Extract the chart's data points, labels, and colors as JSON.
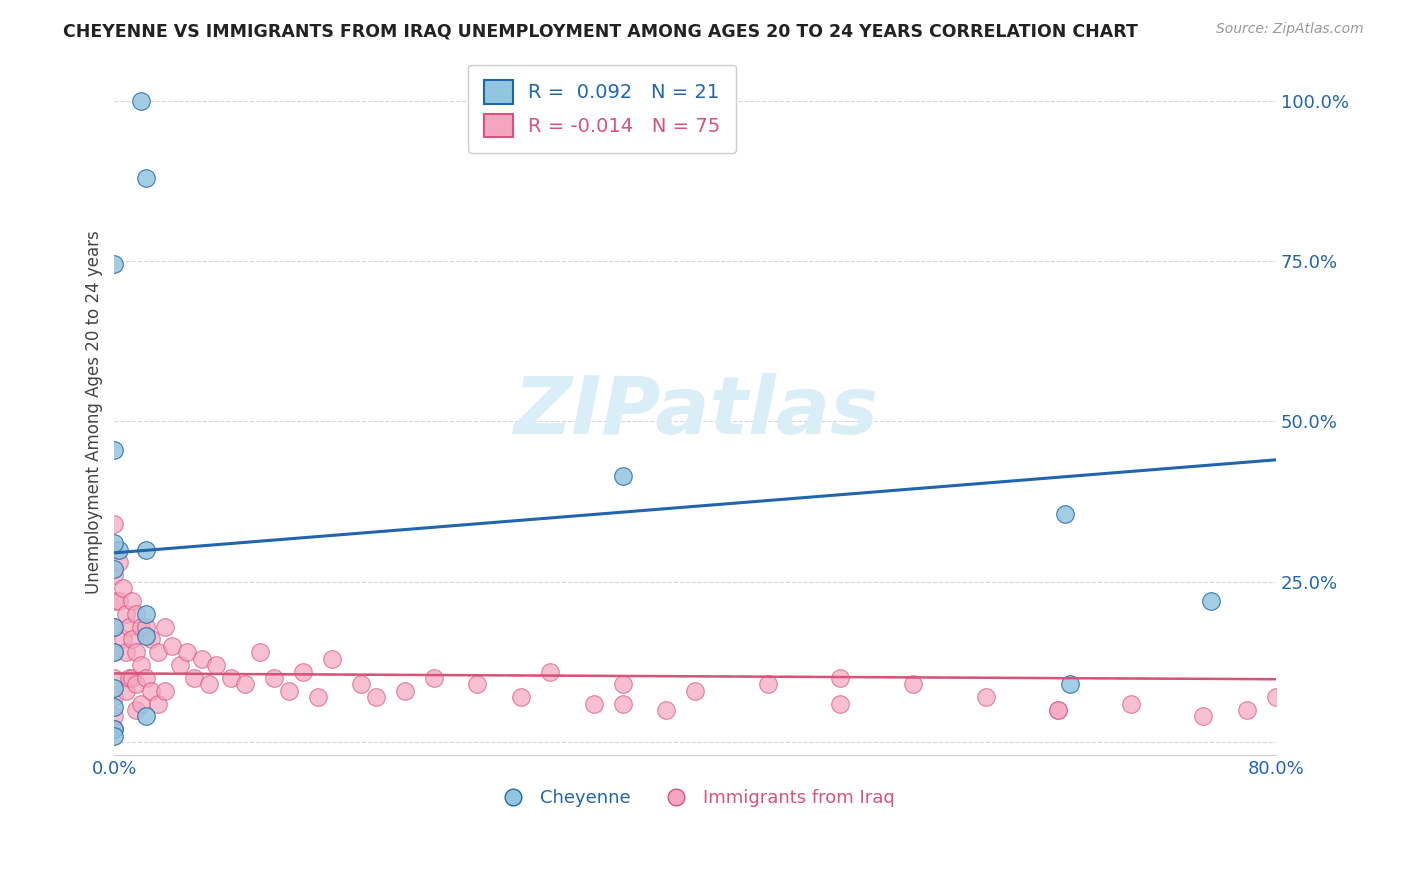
{
  "title": "CHEYENNE VS IMMIGRANTS FROM IRAQ UNEMPLOYMENT AMONG AGES 20 TO 24 YEARS CORRELATION CHART",
  "source": "Source: ZipAtlas.com",
  "ylabel": "Unemployment Among Ages 20 to 24 years",
  "xlim": [
    0.0,
    0.8
  ],
  "ylim": [
    -0.02,
    1.05
  ],
  "yticks": [
    0.0,
    0.25,
    0.5,
    0.75,
    1.0
  ],
  "ytick_labels": [
    "",
    "25.0%",
    "50.0%",
    "75.0%",
    "100.0%"
  ],
  "xticks": [
    0.0,
    0.1,
    0.2,
    0.3,
    0.4,
    0.5,
    0.6,
    0.7,
    0.8
  ],
  "xtick_labels": [
    "0.0%",
    "",
    "",
    "",
    "",
    "",
    "",
    "",
    "80.0%"
  ],
  "cheyenne_color": "#92c5de",
  "iraq_color": "#f4a6c0",
  "cheyenne_line_color": "#2166ac",
  "iraq_line_color": "#d6537a",
  "legend_R_cheyenne": " 0.092",
  "legend_N_cheyenne": "21",
  "legend_R_iraq": "-0.014",
  "legend_N_iraq": "75",
  "watermark_color": "#daeef8",
  "cheyenne_x": [
    0.018,
    0.022,
    0.0,
    0.0,
    0.003,
    0.35,
    0.022,
    0.0,
    0.655,
    0.755,
    0.022,
    0.0,
    0.022,
    0.0,
    0.658,
    0.0,
    0.0,
    0.022,
    0.0,
    0.0,
    0.0
  ],
  "cheyenne_y": [
    1.0,
    0.88,
    0.455,
    0.745,
    0.3,
    0.415,
    0.3,
    0.27,
    0.355,
    0.22,
    0.2,
    0.18,
    0.165,
    0.14,
    0.09,
    0.085,
    0.055,
    0.04,
    0.02,
    0.01,
    0.31
  ],
  "iraq_x": [
    0.0,
    0.0,
    0.0,
    0.0,
    0.0,
    0.0,
    0.0,
    0.0,
    0.0,
    0.0,
    0.003,
    0.003,
    0.006,
    0.006,
    0.008,
    0.008,
    0.008,
    0.01,
    0.01,
    0.012,
    0.012,
    0.012,
    0.015,
    0.015,
    0.015,
    0.015,
    0.018,
    0.018,
    0.018,
    0.022,
    0.022,
    0.025,
    0.025,
    0.03,
    0.03,
    0.035,
    0.035,
    0.04,
    0.045,
    0.05,
    0.055,
    0.06,
    0.065,
    0.07,
    0.08,
    0.09,
    0.1,
    0.11,
    0.12,
    0.13,
    0.14,
    0.15,
    0.17,
    0.18,
    0.2,
    0.22,
    0.25,
    0.28,
    0.3,
    0.33,
    0.35,
    0.38,
    0.4,
    0.45,
    0.5,
    0.55,
    0.6,
    0.65,
    0.7,
    0.75,
    0.78,
    0.8,
    0.35,
    0.5,
    0.65
  ],
  "iraq_y": [
    0.34,
    0.3,
    0.26,
    0.22,
    0.18,
    0.14,
    0.1,
    0.07,
    0.04,
    0.02,
    0.28,
    0.22,
    0.24,
    0.16,
    0.2,
    0.14,
    0.08,
    0.18,
    0.1,
    0.22,
    0.16,
    0.1,
    0.2,
    0.14,
    0.09,
    0.05,
    0.18,
    0.12,
    0.06,
    0.18,
    0.1,
    0.16,
    0.08,
    0.14,
    0.06,
    0.18,
    0.08,
    0.15,
    0.12,
    0.14,
    0.1,
    0.13,
    0.09,
    0.12,
    0.1,
    0.09,
    0.14,
    0.1,
    0.08,
    0.11,
    0.07,
    0.13,
    0.09,
    0.07,
    0.08,
    0.1,
    0.09,
    0.07,
    0.11,
    0.06,
    0.09,
    0.05,
    0.08,
    0.09,
    0.1,
    0.09,
    0.07,
    0.05,
    0.06,
    0.04,
    0.05,
    0.07,
    0.06,
    0.06,
    0.05
  ],
  "blue_line_x0": 0.0,
  "blue_line_y0": 0.295,
  "blue_line_x1": 0.8,
  "blue_line_y1": 0.44,
  "pink_line_x0": 0.0,
  "pink_line_y0": 0.107,
  "pink_line_x1": 0.8,
  "pink_line_y1": 0.098
}
